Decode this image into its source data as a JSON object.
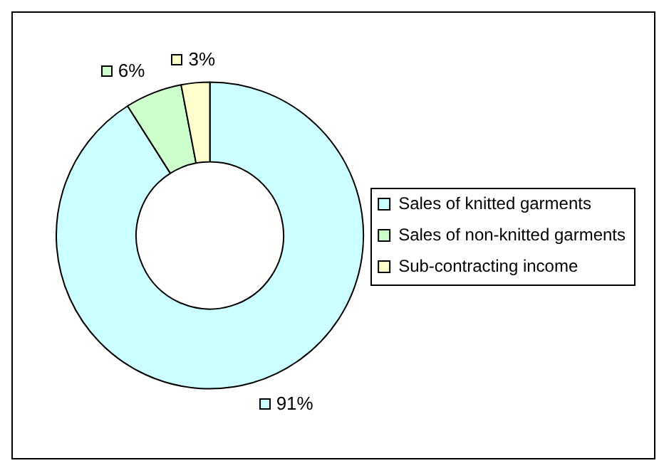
{
  "chart_data": {
    "type": "donut",
    "categories": [
      "Sales of knitted garments",
      "Sales of non-knitted garments",
      "Sub-contracting income"
    ],
    "values": [
      91,
      6,
      3
    ],
    "colors": [
      "#ccffff",
      "#ccffcc",
      "#ffffcc"
    ],
    "value_labels": [
      "91%",
      "6%",
      "3%"
    ],
    "legend": "right"
  }
}
